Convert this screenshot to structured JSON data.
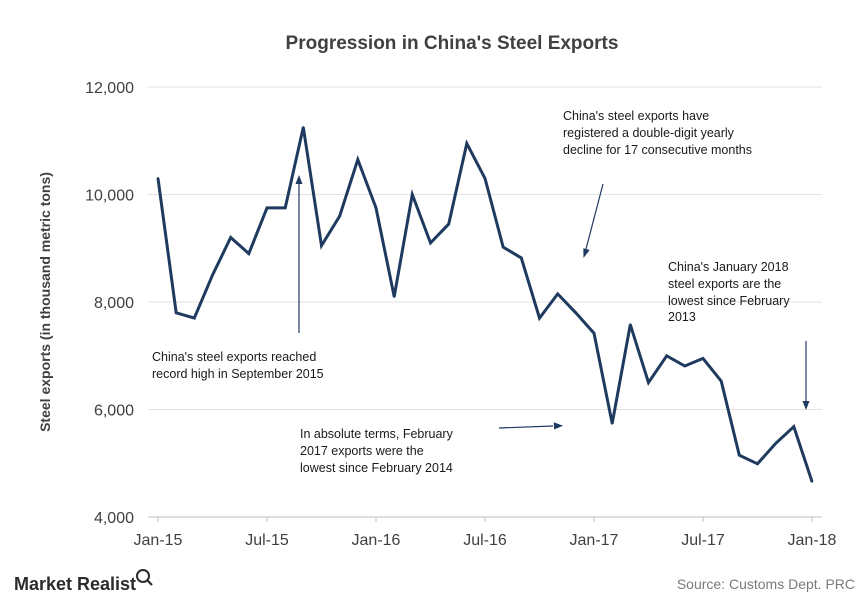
{
  "chart_data": {
    "type": "line",
    "title": "Progression in China's Steel Exports",
    "xlabel": "",
    "ylabel": "Steel exports (in thousand metric tons)",
    "ylim": [
      4000,
      12000
    ],
    "yticks": [
      4000,
      6000,
      8000,
      10000,
      12000
    ],
    "ytick_labels": [
      "4,000",
      "6,000",
      "8,000",
      "10,000",
      "12,000"
    ],
    "xtick_labels": [
      "Jan-15",
      "Jul-15",
      "Jan-16",
      "Jul-16",
      "Jan-17",
      "Jul-17",
      "Jan-18"
    ],
    "grid": "horizontal",
    "line_color": "#1f3a5f",
    "x": [
      "Jan-15",
      "Feb-15",
      "Mar-15",
      "Apr-15",
      "May-15",
      "Jun-15",
      "Jul-15",
      "Aug-15",
      "Sep-15",
      "Oct-15",
      "Nov-15",
      "Dec-15",
      "Jan-16",
      "Feb-16",
      "Mar-16",
      "Apr-16",
      "May-16",
      "Jun-16",
      "Jul-16",
      "Aug-16",
      "Sep-16",
      "Oct-16",
      "Nov-16",
      "Dec-16",
      "Jan-17",
      "Feb-17",
      "Mar-17",
      "Apr-17",
      "May-17",
      "Jun-17",
      "Jul-17",
      "Aug-17",
      "Sep-17",
      "Oct-17",
      "Nov-17",
      "Dec-17",
      "Jan-18"
    ],
    "series": [
      {
        "values": [
          10300,
          7800,
          7700,
          8500,
          9200,
          8900,
          9750,
          9750,
          11250,
          9050,
          9600,
          10650,
          9750,
          8100,
          10000,
          9100,
          9450,
          10950,
          10300,
          9020,
          8820,
          7700,
          8150,
          7800,
          7420,
          5740,
          7580,
          6500,
          7000,
          6810,
          6950,
          6530,
          5150,
          4990,
          5370,
          5680,
          4660
        ]
      }
    ],
    "annotations": [
      "China's steel exports reached record high in September 2015",
      "China's steel exports have registered a double-digit yearly decline for 17 consecutive months",
      "In absolute terms, February 2017 exports were the lowest since February 2014",
      "China's January 2018 steel exports are the lowest since February 2013"
    ]
  },
  "annotations": {
    "record_high": [
      "China's steel exports reached",
      "record high in September 2015"
    ],
    "decline": [
      "China's steel exports have",
      "registered a double-digit yearly",
      "decline for 17 consecutive months"
    ],
    "feb2017": [
      "In absolute terms, February",
      "2017 exports were the",
      "lowest since February 2014"
    ],
    "jan2018": [
      "China's January 2018",
      "steel exports are the",
      "lowest since February",
      "2013"
    ]
  },
  "footer": {
    "brand": "Market Realist",
    "source": "Source: Customs Dept. PRC"
  }
}
